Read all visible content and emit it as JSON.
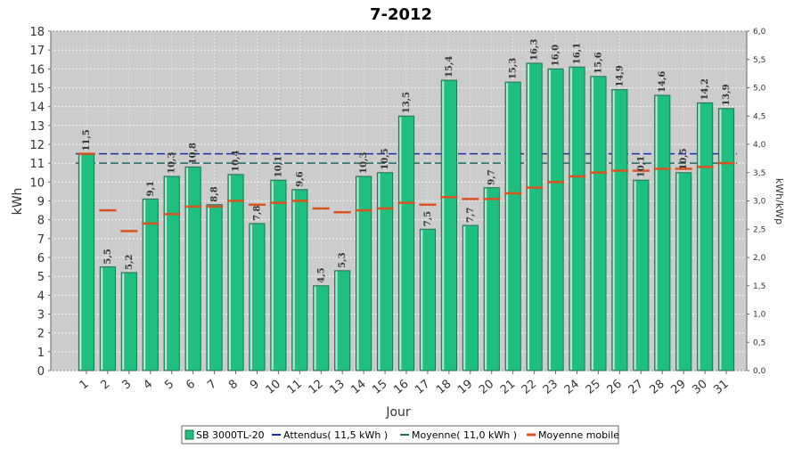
{
  "chart_data": {
    "type": "bar",
    "title": "7-2012",
    "xlabel": "Jour",
    "ylabel": "kWh",
    "y2label": "kWh/kWp",
    "ylim": [
      0,
      18
    ],
    "y2lim": [
      0,
      6
    ],
    "yticks": [
      "0",
      "1",
      "2",
      "3",
      "4",
      "5",
      "6",
      "7",
      "8",
      "9",
      "10",
      "11",
      "12",
      "13",
      "14",
      "15",
      "16",
      "17",
      "18"
    ],
    "y2ticks": [
      "0,0",
      "0,5",
      "1,0",
      "1,5",
      "2,0",
      "2,5",
      "3,0",
      "3,5",
      "4,0",
      "4,5",
      "5,0",
      "5,5",
      "6,0"
    ],
    "categories": [
      "1",
      "2",
      "3",
      "4",
      "5",
      "6",
      "7",
      "8",
      "9",
      "10",
      "11",
      "12",
      "13",
      "14",
      "15",
      "16",
      "17",
      "18",
      "19",
      "20",
      "21",
      "22",
      "23",
      "24",
      "25",
      "26",
      "27",
      "28",
      "29",
      "30",
      "31"
    ],
    "series": [
      {
        "name": "SB 3000TL-20",
        "kind": "bar",
        "color": "#1fbf7f",
        "values": [
          11.5,
          5.5,
          5.2,
          9.1,
          10.3,
          10.8,
          8.8,
          10.4,
          7.8,
          10.1,
          9.6,
          4.5,
          5.3,
          10.3,
          10.5,
          13.5,
          7.5,
          15.4,
          7.7,
          9.7,
          15.3,
          16.3,
          16.0,
          16.1,
          15.6,
          14.9,
          10.1,
          14.6,
          10.5,
          14.2,
          13.9
        ],
        "labels": [
          "11,5",
          "5,5",
          "5,2",
          "9,1",
          "10,3",
          "10,8",
          "8,8",
          "10,4",
          "7,8",
          "10,1",
          "9,6",
          "4,5",
          "5,3",
          "10,3",
          "10,5",
          "13,5",
          "7,5",
          "15,4",
          "7,7",
          "9,7",
          "15,3",
          "16,3",
          "16,0",
          "16,1",
          "15,6",
          "14,9",
          "10,1",
          "14,6",
          "10,5",
          "14,2",
          "13,9"
        ]
      },
      {
        "name": "Attendus( 11,5 kWh )",
        "kind": "hline",
        "color": "#1a2fa8",
        "value": 11.5
      },
      {
        "name": "Moyenne( 11,0 kWh )",
        "kind": "hline",
        "color": "#1f6b63",
        "value": 11.0
      },
      {
        "name": "Moyenne mobile",
        "kind": "marker",
        "color": "#d9531e",
        "values": [
          11.5,
          8.5,
          7.4,
          7.8,
          8.3,
          8.7,
          8.7,
          9.0,
          8.8,
          8.9,
          9.0,
          8.6,
          8.4,
          8.5,
          8.6,
          8.9,
          8.8,
          9.2,
          9.1,
          9.1,
          9.4,
          9.7,
          10.0,
          10.3,
          10.5,
          10.6,
          10.6,
          10.7,
          10.7,
          10.8,
          11.0
        ]
      }
    ],
    "grid": true,
    "legend": "bottom"
  }
}
